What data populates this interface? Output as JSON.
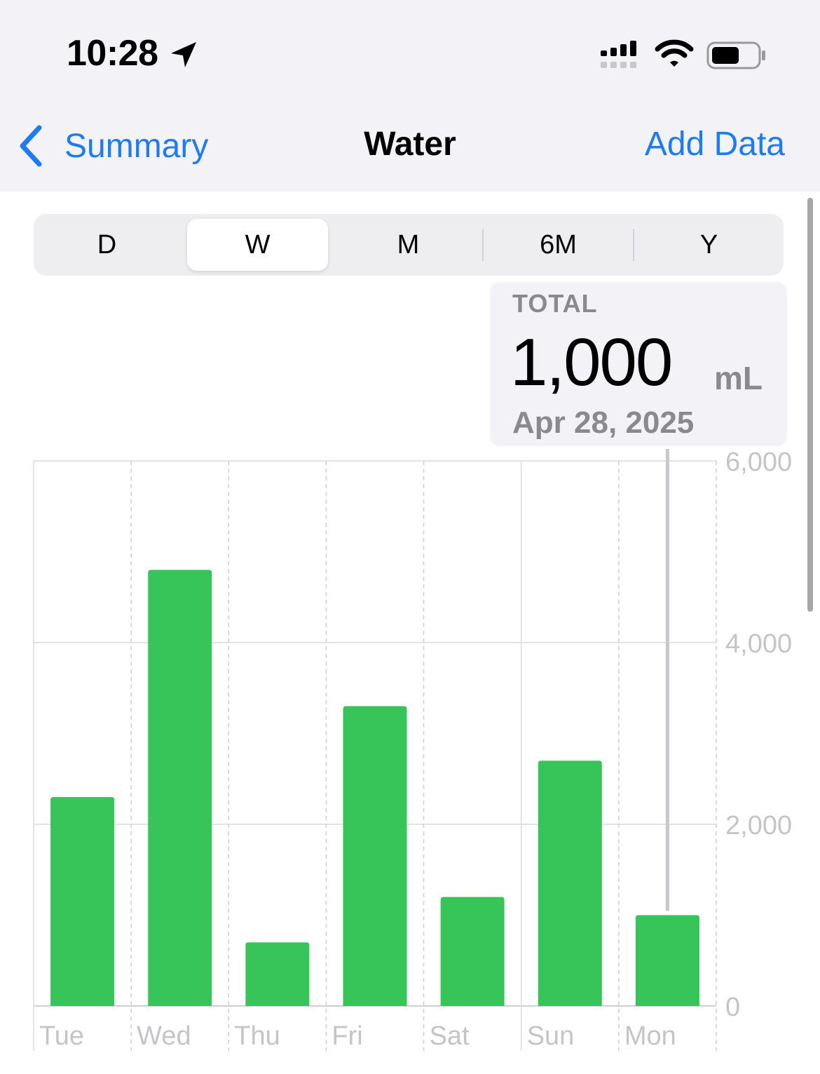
{
  "status_bar": {
    "time": "10:28",
    "icons": [
      "location-arrow-icon",
      "cellular-signal-icon",
      "wifi-icon",
      "battery-icon"
    ]
  },
  "nav": {
    "back_label": "Summary",
    "title": "Water",
    "action_label": "Add Data"
  },
  "segments": {
    "items": [
      "D",
      "W",
      "M",
      "6M",
      "Y"
    ],
    "selected": "W"
  },
  "callout": {
    "label": "TOTAL",
    "value": "1,000",
    "unit": "mL",
    "date": "Apr 28, 2025"
  },
  "colors": {
    "accent": "#1e7cf0",
    "bar": "#37c55a",
    "secondary_text": "#8a8a8e",
    "background_bar": "#f2f2f7"
  },
  "chart_data": {
    "type": "bar",
    "categories": [
      "Tue",
      "Wed",
      "Thu",
      "Fri",
      "Sat",
      "Sun",
      "Mon"
    ],
    "values": [
      2300,
      4800,
      700,
      3300,
      1200,
      2700,
      1000
    ],
    "ylim": [
      0,
      6000
    ],
    "yticks": [
      "0",
      "2,000",
      "4,000",
      "6,000"
    ],
    "ytick_values": [
      0,
      2000,
      4000,
      6000
    ],
    "highlighted": "Mon",
    "grid": true,
    "title": "",
    "xlabel": "",
    "ylabel": ""
  }
}
